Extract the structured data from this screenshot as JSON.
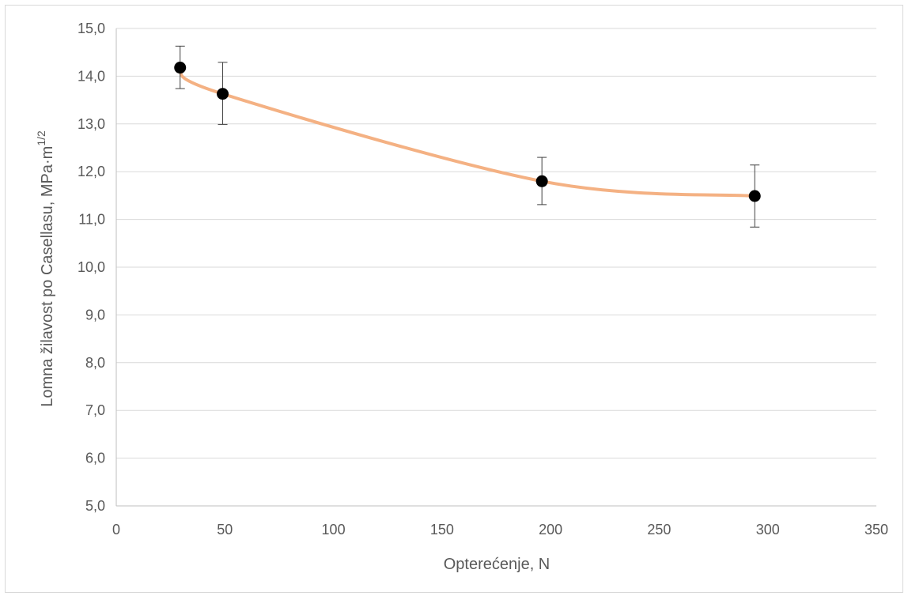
{
  "chart_data": {
    "type": "scatter",
    "title": "",
    "xlabel": "Opterećenje, N",
    "ylabel_main": "Lomna žilavost po Casellasu, MPa·m",
    "ylabel_sup": "1/2",
    "xlim": [
      0,
      350
    ],
    "ylim": [
      5,
      15
    ],
    "x_ticks": [
      "0",
      "50",
      "100",
      "150",
      "200",
      "250",
      "300",
      "350"
    ],
    "y_ticks": [
      "5,0",
      "6,0",
      "7,0",
      "8,0",
      "9,0",
      "10,0",
      "11,0",
      "12,0",
      "13,0",
      "14,0",
      "15,0"
    ],
    "x_tick_values": [
      0,
      50,
      100,
      150,
      200,
      250,
      300,
      350
    ],
    "y_tick_values": [
      5,
      6,
      7,
      8,
      9,
      10,
      11,
      12,
      13,
      14,
      15
    ],
    "grid": "horizontal",
    "legend": "none",
    "series": [
      {
        "points": [
          {
            "x": 29.4,
            "y": 14.18,
            "err_low": 13.74,
            "err_high": 14.63
          },
          {
            "x": 49,
            "y": 13.63,
            "err_low": 12.99,
            "err_high": 14.29
          },
          {
            "x": 196,
            "y": 11.8,
            "err_low": 11.31,
            "err_high": 12.3
          },
          {
            "x": 294,
            "y": 11.49,
            "err_low": 10.84,
            "err_high": 12.14
          }
        ],
        "marker_color": "#000000",
        "trend_color": "#f4b183"
      }
    ],
    "colors": {
      "grid": "#d9d9d9",
      "axis": "#bfbfbf",
      "text": "#595959",
      "error_bar": "#404040"
    }
  }
}
